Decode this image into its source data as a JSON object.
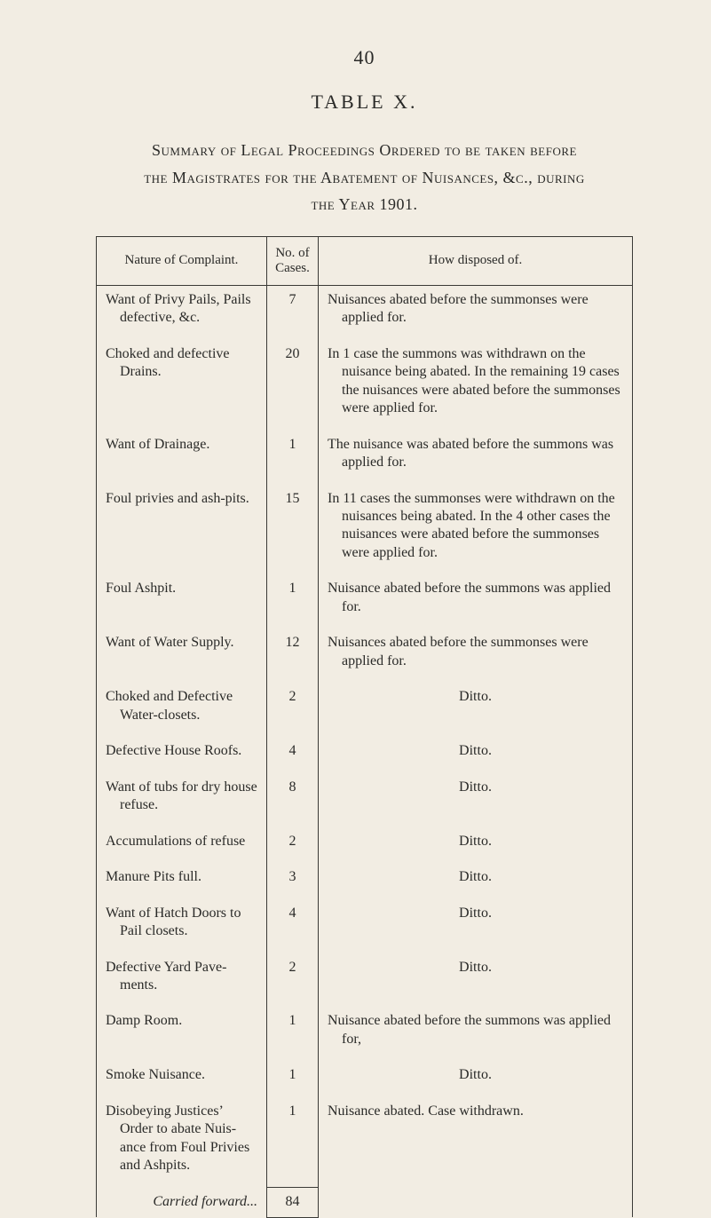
{
  "page_number": "40",
  "table_title": "TABLE X.",
  "summary_heading_line1": "Summary of Legal Proceedings Ordered to be taken before",
  "summary_heading_line2": "the Magistrates for the Abatement of Nuisances, &c., during",
  "summary_heading_line3": "the Year 1901.",
  "headers": {
    "nature": "Nature of Complaint.",
    "cases": "No. of Cases.",
    "disposed": "How disposed of."
  },
  "rows": [
    {
      "nature": "Want of Privy Pails, Pails defective, &c.",
      "cases": "7",
      "disposed": "Nuisances abated before the summonses were applied for."
    },
    {
      "nature": "Choked and defective Drains.",
      "cases": "20",
      "disposed": "In 1 case the summons was with­drawn on the nuisance being abated. In the remaining 19 cases the nuis­ances were abated before the sum­monses were applied for."
    },
    {
      "nature": "Want of Drainage.",
      "cases": "1",
      "disposed": "The nuisance was abated before the summons was applied for."
    },
    {
      "nature": "Foul privies and ash-pits.",
      "cases": "15",
      "disposed": "In 11 cases the summonses were with­drawn on the nuisances being abated. In the 4 other cases the nuisances were abated before the summonses were applied for."
    },
    {
      "nature": "Foul Ashpit.",
      "cases": "1",
      "disposed": "Nuisance abated before the summons was applied for."
    },
    {
      "nature": "Want of Water Supply.",
      "cases": "12",
      "disposed": "Nuisances abated before the summonses were applied for."
    },
    {
      "nature": "Choked and Defective Water-closets.",
      "cases": "2",
      "disposed": "Ditto.",
      "center": true
    },
    {
      "nature": "Defective House Roofs.",
      "cases": "4",
      "disposed": "Ditto.",
      "center": true
    },
    {
      "nature": "Want of tubs for dry house refuse.",
      "cases": "8",
      "disposed": "Ditto.",
      "center": true
    },
    {
      "nature": "Accumulations of refuse",
      "cases": "2",
      "disposed": "Ditto.",
      "center": true
    },
    {
      "nature": "Manure Pits full.",
      "cases": "3",
      "disposed": "Ditto.",
      "center": true
    },
    {
      "nature": "Want of Hatch Doors to Pail closets.",
      "cases": "4",
      "disposed": "Ditto.",
      "center": true
    },
    {
      "nature": "Defective Yard Pave­ments.",
      "cases": "2",
      "disposed": "Ditto.",
      "center": true
    },
    {
      "nature": "Damp Room.",
      "cases": "1",
      "disposed": "Nuisance abated before the summons was applied for,"
    },
    {
      "nature": "Smoke Nuisance.",
      "cases": "1",
      "disposed": "Ditto.",
      "center": true
    },
    {
      "nature": "Disobeying Justices’ Order to abate Nuis­ance from Foul Priv­ies and Ashpits.",
      "cases": "1",
      "disposed": "Nuisance abated. Case withdrawn."
    }
  ],
  "carried": {
    "label": "Carried forward...",
    "value": "84"
  },
  "colors": {
    "background": "#f2ede3",
    "text": "#2a2a28",
    "border": "#3a3a36"
  }
}
